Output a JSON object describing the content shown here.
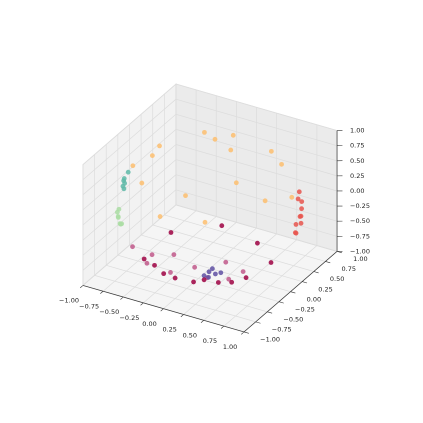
{
  "chart_data": {
    "type": "scatter3d",
    "xlim": [
      -1,
      1
    ],
    "ylim": [
      -1,
      1
    ],
    "zlim": [
      -1,
      1
    ],
    "xticks": [
      {
        "value": -1,
        "label": "−1.00"
      },
      {
        "value": -0.75,
        "label": "−0.75"
      },
      {
        "value": -0.5,
        "label": "−0.50"
      },
      {
        "value": -0.25,
        "label": "−0.25"
      },
      {
        "value": 0,
        "label": "0.00"
      },
      {
        "value": 0.25,
        "label": "0.25"
      },
      {
        "value": 0.5,
        "label": "0.50"
      },
      {
        "value": 0.75,
        "label": "0.75"
      },
      {
        "value": 1,
        "label": "1.00"
      }
    ],
    "yticks": [
      {
        "value": -1,
        "label": "−1.00"
      },
      {
        "value": -0.75,
        "label": "−0.75"
      },
      {
        "value": -0.5,
        "label": "−0.50"
      },
      {
        "value": -0.25,
        "label": "−0.25"
      },
      {
        "value": 0,
        "label": "0.00"
      },
      {
        "value": 0.25,
        "label": "0.25"
      },
      {
        "value": 0.5,
        "label": "0.50"
      },
      {
        "value": 0.75,
        "label": "0.75"
      },
      {
        "value": 1,
        "label": "1.00"
      }
    ],
    "zticks": [
      {
        "value": -1,
        "label": "−1.00"
      },
      {
        "value": -0.75,
        "label": "−0.75"
      },
      {
        "value": -0.5,
        "label": "−0.50"
      },
      {
        "value": -0.25,
        "label": "−0.25"
      },
      {
        "value": 0,
        "label": "0.00"
      },
      {
        "value": 0.25,
        "label": "0.25"
      },
      {
        "value": 0.5,
        "label": "0.50"
      },
      {
        "value": 0.75,
        "label": "0.75"
      },
      {
        "value": 1,
        "label": "1.00"
      }
    ],
    "grid": true,
    "series": [
      {
        "color": "#fdbe6e",
        "x": [
          0.2,
          -0.3,
          0.5,
          -0.6,
          0.1,
          0.6,
          -0.4,
          -0.8,
          0.3,
          0.8,
          -0.1,
          0.9,
          -0.5,
          0.0,
          0.4,
          -0.9
        ],
        "y": [
          0.1,
          0.4,
          -0.3,
          -0.2,
          -0.7,
          0.5,
          0.8,
          0.3,
          0.8,
          -0.2,
          -0.9,
          0.2,
          -0.6,
          0.5,
          -0.8,
          -0.1
        ],
        "z": [
          0.97,
          0.87,
          0.81,
          0.77,
          0.71,
          0.62,
          0.45,
          0.52,
          0.52,
          0.56,
          0.42,
          0.39,
          0.62,
          0.87,
          0.45,
          0.42
        ]
      },
      {
        "color": "#5fbaa8",
        "x": [
          -0.87,
          -0.8,
          -0.9,
          -0.85,
          -0.78,
          -0.92
        ],
        "y": [
          -0.35,
          -0.45,
          -0.2,
          -0.4,
          -0.5,
          -0.25
        ],
        "z": [
          0.35,
          0.4,
          0.38,
          0.3,
          0.35,
          0.3
        ]
      },
      {
        "color": "#abdda4",
        "x": [
          -0.85,
          -0.8,
          -0.9,
          -0.82,
          -0.88,
          -0.75,
          -0.85
        ],
        "y": [
          -0.5,
          -0.55,
          -0.4,
          -0.5,
          -0.45,
          -0.6,
          -0.52
        ],
        "z": [
          -0.15,
          -0.2,
          -0.1,
          -0.25,
          -0.18,
          -0.15,
          -0.05
        ]
      },
      {
        "color": "#e8554e",
        "x": [
          0.85,
          0.8,
          0.87,
          0.82,
          0.8,
          0.75,
          0.86,
          0.83,
          0.84,
          0.78
        ],
        "y": [
          0.5,
          0.55,
          0.45,
          0.5,
          0.45,
          0.55,
          0.48,
          0.52,
          0.44,
          0.5
        ],
        "z": [
          0.1,
          -0.2,
          -0.1,
          0.25,
          -0.4,
          -0.35,
          0.0,
          -0.28,
          0.18,
          -0.45
        ]
      },
      {
        "color": "#c0588a",
        "x": [
          0.3,
          -0.2,
          0.6,
          0.1,
          -0.5,
          0.7,
          0.4,
          -0.35,
          0.0,
          0.55
        ],
        "y": [
          -0.85,
          -0.9,
          -0.7,
          -0.95,
          -0.8,
          -0.5,
          -0.75,
          -0.75,
          -0.85,
          -0.55
        ],
        "z": [
          -0.3,
          -0.25,
          -0.2,
          -0.1,
          -0.3,
          -0.45,
          -0.5,
          -0.55,
          -0.5,
          -0.6
        ]
      },
      {
        "color": "#5e4fa2",
        "x": [
          0.45,
          0.5,
          0.4,
          0.55,
          0.48,
          0.42
        ],
        "y": [
          -0.8,
          -0.75,
          -0.82,
          -0.72,
          -0.78,
          -0.76
        ],
        "z": [
          -0.35,
          -0.4,
          -0.42,
          -0.38,
          -0.3,
          -0.48
        ]
      },
      {
        "color": "#9e0142",
        "x": [
          0.1,
          0.5,
          -0.4,
          0.7,
          -0.6,
          0.2,
          -0.2,
          0.45,
          -0.5,
          0.65,
          0.0,
          0.3,
          -0.2
        ],
        "y": [
          -0.3,
          -0.4,
          -0.5,
          0.1,
          0.2,
          -0.7,
          -0.65,
          -0.6,
          -0.55,
          -0.35,
          -0.75,
          0.5,
          0.6
        ],
        "z": [
          -0.95,
          -0.77,
          -0.77,
          -0.7,
          -0.77,
          -0.68,
          -0.73,
          -0.66,
          -0.67,
          -0.67,
          -0.66,
          -0.8,
          -0.77
        ]
      }
    ]
  }
}
